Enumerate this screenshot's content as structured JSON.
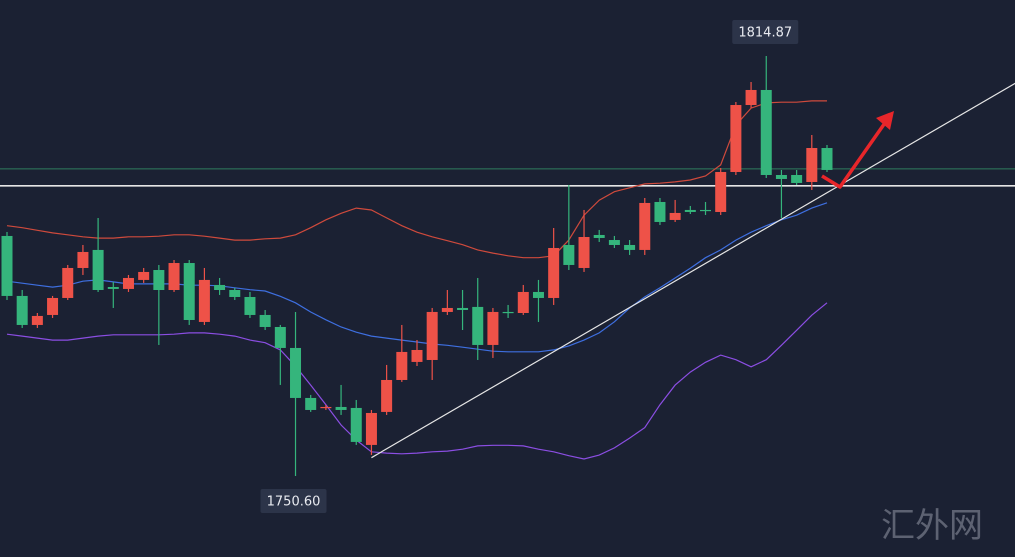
{
  "chart_data": {
    "type": "candlestick",
    "ylim": [
      1738.2,
      1823.44
    ],
    "up_color": "#ee5248",
    "down_color": "#35b57c",
    "open": [
      1787.33,
      1778.15,
      1773.71,
      1775.24,
      1777.84,
      1782.43,
      1785.19,
      1779.52,
      1779.22,
      1780.6,
      1782.12,
      1779.06,
      1783.19,
      1774.17,
      1779.83,
      1779.06,
      1777.99,
      1775.24,
      1773.4,
      1770.19,
      1762.54,
      1761.01,
      1761.16,
      1761.01,
      1755.35,
      1760.4,
      1765.29,
      1768.05,
      1768.35,
      1775.7,
      1776.31,
      1776.47,
      1770.65,
      1775.7,
      1775.54,
      1778.76,
      1777.84,
      1785.95,
      1782.43,
      1787.48,
      1786.71,
      1785.95,
      1785.19,
      1792.53,
      1789.78,
      1791.31,
      1791.31,
      1791.0,
      1797.12,
      1807.37,
      1809.67,
      1796.66,
      1796.66,
      1795.59,
      1800.79
    ],
    "high": [
      1787.94,
      1779.06,
      1775.54,
      1778.15,
      1782.89,
      1785.95,
      1790.08,
      1780.29,
      1781.36,
      1782.43,
      1782.89,
      1783.65,
      1783.65,
      1782.43,
      1780.9,
      1779.37,
      1778.76,
      1776.0,
      1773.71,
      1775.7,
      1763.0,
      1761.47,
      1764.53,
      1762.23,
      1760.7,
      1767.59,
      1773.71,
      1771.41,
      1776.31,
      1779.06,
      1779.06,
      1780.9,
      1776.31,
      1776.77,
      1779.83,
      1780.6,
      1788.55,
      1795.13,
      1791.31,
      1788.25,
      1787.33,
      1786.71,
      1793.14,
      1793.14,
      1792.84,
      1791.92,
      1792.53,
      1797.73,
      1807.83,
      1810.89,
      1814.87,
      1797.43,
      1797.43,
      1802.78,
      1801.25
    ],
    "low": [
      1777.53,
      1773.25,
      1773.25,
      1774.78,
      1777.53,
      1781.36,
      1778.76,
      1776.31,
      1778.76,
      1780.14,
      1770.65,
      1778.76,
      1773.71,
      1773.71,
      1778.3,
      1777.53,
      1774.78,
      1772.94,
      1764.53,
      1750.6,
      1760.4,
      1760.7,
      1759.94,
      1755.35,
      1753.82,
      1759.94,
      1764.99,
      1767.43,
      1765.29,
      1775.24,
      1772.94,
      1768.35,
      1768.66,
      1774.78,
      1775.24,
      1774.17,
      1776.77,
      1782.12,
      1781.82,
      1786.41,
      1785.49,
      1784.42,
      1784.42,
      1789.01,
      1789.47,
      1790.69,
      1790.54,
      1790.54,
      1796.66,
      1806.91,
      1796.2,
      1790.08,
      1795.13,
      1794.37,
      1797.12
    ],
    "close": [
      1778.15,
      1773.71,
      1775.09,
      1777.84,
      1782.43,
      1784.88,
      1779.06,
      1779.22,
      1780.9,
      1781.82,
      1779.06,
      1783.19,
      1774.47,
      1780.6,
      1779.06,
      1777.99,
      1775.24,
      1773.4,
      1770.19,
      1762.54,
      1760.7,
      1761.16,
      1760.7,
      1755.81,
      1760.24,
      1765.29,
      1769.58,
      1769.88,
      1775.7,
      1776.31,
      1776.0,
      1770.65,
      1775.7,
      1775.54,
      1778.76,
      1777.84,
      1785.49,
      1782.89,
      1787.17,
      1787.02,
      1785.95,
      1785.19,
      1792.38,
      1789.47,
      1790.85,
      1791.0,
      1791.15,
      1797.12,
      1807.37,
      1809.67,
      1796.66,
      1796.05,
      1795.44,
      1800.79,
      1797.43
    ],
    "bands": [
      {
        "color": "#cf4a3c",
        "values": [
          1788.9,
          1788.6,
          1788.2,
          1787.8,
          1787.5,
          1787.2,
          1787.0,
          1787.0,
          1787.2,
          1787.2,
          1787.3,
          1787.5,
          1787.5,
          1787.3,
          1787.0,
          1786.7,
          1786.7,
          1786.9,
          1787.0,
          1787.5,
          1788.6,
          1789.8,
          1790.8,
          1791.6,
          1791.3,
          1790.1,
          1788.9,
          1787.9,
          1787.2,
          1786.6,
          1786.0,
          1785.2,
          1784.7,
          1784.3,
          1784.0,
          1784.0,
          1784.3,
          1786.7,
          1790.5,
          1792.8,
          1794.1,
          1794.7,
          1795.3,
          1795.4,
          1795.6,
          1795.9,
          1796.5,
          1798.2,
          1804.3,
          1806.9,
          1807.7,
          1807.8,
          1807.8,
          1808.0,
          1808.0
        ]
      },
      {
        "color": "#3e6fe0",
        "values": [
          1780.4,
          1780.1,
          1779.8,
          1779.5,
          1779.8,
          1780.4,
          1780.6,
          1780.3,
          1780.0,
          1780.0,
          1780.0,
          1780.0,
          1779.8,
          1779.8,
          1779.7,
          1779.4,
          1779.1,
          1778.9,
          1778.1,
          1777.1,
          1775.7,
          1774.5,
          1773.4,
          1772.6,
          1772.0,
          1771.7,
          1771.4,
          1771.1,
          1770.8,
          1770.6,
          1770.3,
          1770.0,
          1769.7,
          1769.6,
          1769.6,
          1769.6,
          1769.9,
          1770.5,
          1771.4,
          1772.5,
          1774.2,
          1776.3,
          1778.0,
          1779.4,
          1780.9,
          1782.4,
          1784.0,
          1785.2,
          1786.7,
          1787.9,
          1788.9,
          1789.8,
          1790.5,
          1791.6,
          1792.4
        ]
      },
      {
        "color": "#8b4ee3",
        "values": [
          1772.3,
          1772.0,
          1771.7,
          1771.4,
          1771.4,
          1771.7,
          1772.0,
          1772.2,
          1772.2,
          1772.2,
          1772.2,
          1772.3,
          1772.5,
          1772.5,
          1772.3,
          1772.0,
          1771.4,
          1771.0,
          1769.9,
          1767.4,
          1764.5,
          1761.5,
          1758.4,
          1756.1,
          1754.3,
          1754.1,
          1754.0,
          1754.1,
          1754.3,
          1754.4,
          1754.7,
          1755.2,
          1755.3,
          1755.3,
          1755.2,
          1754.7,
          1754.3,
          1753.7,
          1753.2,
          1753.8,
          1754.9,
          1756.4,
          1758.0,
          1761.5,
          1764.5,
          1766.5,
          1768.0,
          1769.1,
          1768.4,
          1767.3,
          1768.4,
          1770.6,
          1772.9,
          1775.2,
          1777.1
        ]
      }
    ],
    "price_lines": [
      {
        "value": 1797.6,
        "color": "#2f7d5e"
      },
      {
        "value": 1795.0,
        "color": "#e6e6e6"
      }
    ],
    "trendline": {
      "x": [
        24,
        66.4
      ],
      "y": [
        1753.4,
        1810.7
      ],
      "color": "#e6e6e6"
    },
    "high_label": "1814.87",
    "low_label": "1750.60"
  },
  "watermark": "汇外网"
}
